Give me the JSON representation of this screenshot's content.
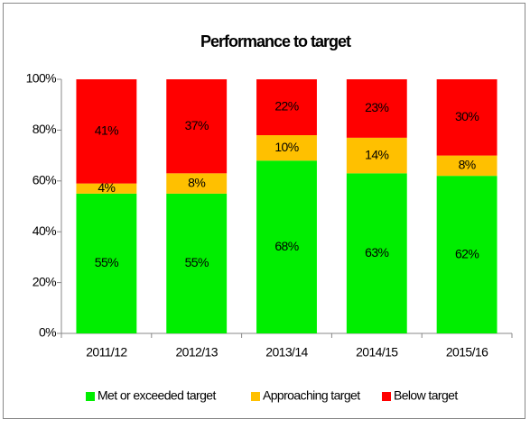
{
  "chart_data": {
    "type": "stacked_bar",
    "title": "Performance to target",
    "categories": [
      "2011/12",
      "2012/13",
      "2013/14",
      "2014/15",
      "2015/16"
    ],
    "series": [
      {
        "name": "Met or exceeded target",
        "color": "#00ee00",
        "values": [
          55,
          55,
          68,
          63,
          62
        ],
        "value_labels": [
          "55%",
          "55%",
          "68%",
          "63%",
          "62%"
        ]
      },
      {
        "name": "Approaching target",
        "color": "#ffc000",
        "values": [
          4,
          8,
          10,
          14,
          8
        ],
        "value_labels": [
          "4%",
          "8%",
          "10%",
          "14%",
          "8%"
        ]
      },
      {
        "name": "Below target",
        "color": "#ff0000",
        "values": [
          41,
          37,
          22,
          23,
          30
        ],
        "value_labels": [
          "41%",
          "37%",
          "22%",
          "23%",
          "30%"
        ]
      }
    ],
    "ylim": [
      0,
      100
    ],
    "yticks": [
      {
        "value": 0,
        "label": "0%"
      },
      {
        "value": 20,
        "label": "20%"
      },
      {
        "value": 40,
        "label": "40%"
      },
      {
        "value": 60,
        "label": "60%"
      },
      {
        "value": 80,
        "label": "80%"
      },
      {
        "value": 100,
        "label": "100%"
      }
    ],
    "legend": "bottom"
  }
}
